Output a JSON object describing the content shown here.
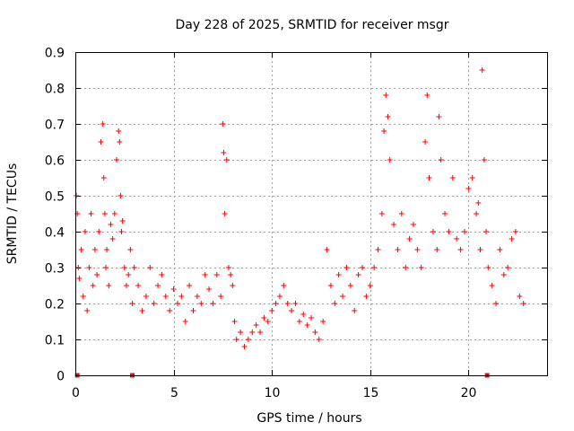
{
  "chart_data": {
    "type": "scatter",
    "title": "Day 228 of 2025, SRMTID for receiver msgr",
    "xlabel": "GPS time / hours",
    "ylabel": "SRMTID / TECUs",
    "xlim": [
      0,
      24
    ],
    "ylim": [
      0,
      0.9
    ],
    "xticks": [
      0,
      5,
      10,
      15,
      20
    ],
    "xtick_labels": [
      "0",
      "5",
      "10",
      "15",
      "20"
    ],
    "yticks": [
      0,
      0.1,
      0.2,
      0.3,
      0.4,
      0.5,
      0.6,
      0.7,
      0.8,
      0.9
    ],
    "ytick_labels": [
      "0",
      "0.1",
      "0.2",
      "0.3",
      "0.4",
      "0.5",
      "0.6",
      "0.7",
      "0.8",
      "0.9"
    ],
    "grid": true,
    "marker": "+",
    "color": "#ff0000",
    "baseline_markers": {
      "marker": "square",
      "x": [
        0.1,
        2.9,
        20.95
      ],
      "y": [
        0,
        0,
        0
      ]
    },
    "series": [
      {
        "name": "SRMTID",
        "x": [
          0.05,
          0.1,
          0.15,
          0.2,
          0.3,
          0.4,
          0.5,
          0.6,
          0.7,
          0.8,
          0.9,
          1.0,
          1.1,
          1.2,
          1.3,
          1.4,
          1.45,
          1.5,
          1.55,
          1.6,
          1.7,
          1.8,
          1.9,
          2.0,
          2.1,
          2.2,
          2.25,
          2.3,
          2.35,
          2.4,
          2.5,
          2.6,
          2.7,
          2.8,
          2.9,
          3.0,
          3.2,
          3.4,
          3.6,
          3.8,
          4.0,
          4.2,
          4.4,
          4.6,
          4.8,
          5.0,
          5.2,
          5.4,
          5.6,
          5.8,
          6.0,
          6.2,
          6.4,
          6.6,
          6.8,
          7.0,
          7.2,
          7.4,
          7.5,
          7.55,
          7.6,
          7.7,
          7.8,
          7.9,
          8.0,
          8.1,
          8.2,
          8.4,
          8.6,
          8.8,
          9.0,
          9.2,
          9.4,
          9.6,
          9.8,
          10.0,
          10.2,
          10.4,
          10.6,
          10.8,
          11.0,
          11.2,
          11.4,
          11.6,
          11.8,
          12.0,
          12.2,
          12.4,
          12.6,
          12.8,
          13.0,
          13.2,
          13.4,
          13.6,
          13.8,
          14.0,
          14.2,
          14.4,
          14.6,
          14.8,
          15.0,
          15.2,
          15.4,
          15.6,
          15.7,
          15.8,
          15.9,
          16.0,
          16.2,
          16.4,
          16.6,
          16.8,
          17.0,
          17.2,
          17.4,
          17.6,
          17.8,
          17.9,
          18.0,
          18.2,
          18.4,
          18.5,
          18.6,
          18.8,
          19.0,
          19.2,
          19.4,
          19.6,
          19.8,
          20.0,
          20.2,
          20.4,
          20.5,
          20.6,
          20.7,
          20.8,
          20.9,
          21.0,
          21.2,
          21.4,
          21.6,
          21.8,
          22.0,
          22.2,
          22.4,
          22.6,
          22.8
        ],
        "y": [
          0.5,
          0.45,
          0.3,
          0.27,
          0.35,
          0.22,
          0.4,
          0.18,
          0.3,
          0.45,
          0.25,
          0.35,
          0.28,
          0.4,
          0.65,
          0.7,
          0.55,
          0.45,
          0.3,
          0.35,
          0.25,
          0.42,
          0.38,
          0.45,
          0.6,
          0.68,
          0.65,
          0.5,
          0.4,
          0.43,
          0.3,
          0.25,
          0.28,
          0.35,
          0.2,
          0.3,
          0.25,
          0.18,
          0.22,
          0.3,
          0.2,
          0.25,
          0.28,
          0.22,
          0.18,
          0.24,
          0.2,
          0.22,
          0.15,
          0.25,
          0.18,
          0.22,
          0.2,
          0.28,
          0.24,
          0.2,
          0.28,
          0.22,
          0.7,
          0.62,
          0.45,
          0.6,
          0.3,
          0.28,
          0.25,
          0.15,
          0.1,
          0.12,
          0.08,
          0.1,
          0.12,
          0.14,
          0.12,
          0.16,
          0.15,
          0.18,
          0.2,
          0.22,
          0.25,
          0.2,
          0.18,
          0.2,
          0.15,
          0.17,
          0.14,
          0.16,
          0.12,
          0.1,
          0.15,
          0.35,
          0.25,
          0.2,
          0.28,
          0.22,
          0.3,
          0.25,
          0.18,
          0.28,
          0.3,
          0.22,
          0.25,
          0.3,
          0.35,
          0.45,
          0.68,
          0.78,
          0.72,
          0.6,
          0.42,
          0.35,
          0.45,
          0.3,
          0.38,
          0.42,
          0.35,
          0.3,
          0.65,
          0.78,
          0.55,
          0.4,
          0.35,
          0.72,
          0.6,
          0.45,
          0.4,
          0.55,
          0.38,
          0.35,
          0.4,
          0.52,
          0.55,
          0.45,
          0.48,
          0.35,
          0.85,
          0.6,
          0.4,
          0.3,
          0.25,
          0.2,
          0.35,
          0.28,
          0.3,
          0.38,
          0.4,
          0.22,
          0.2
        ]
      }
    ]
  }
}
